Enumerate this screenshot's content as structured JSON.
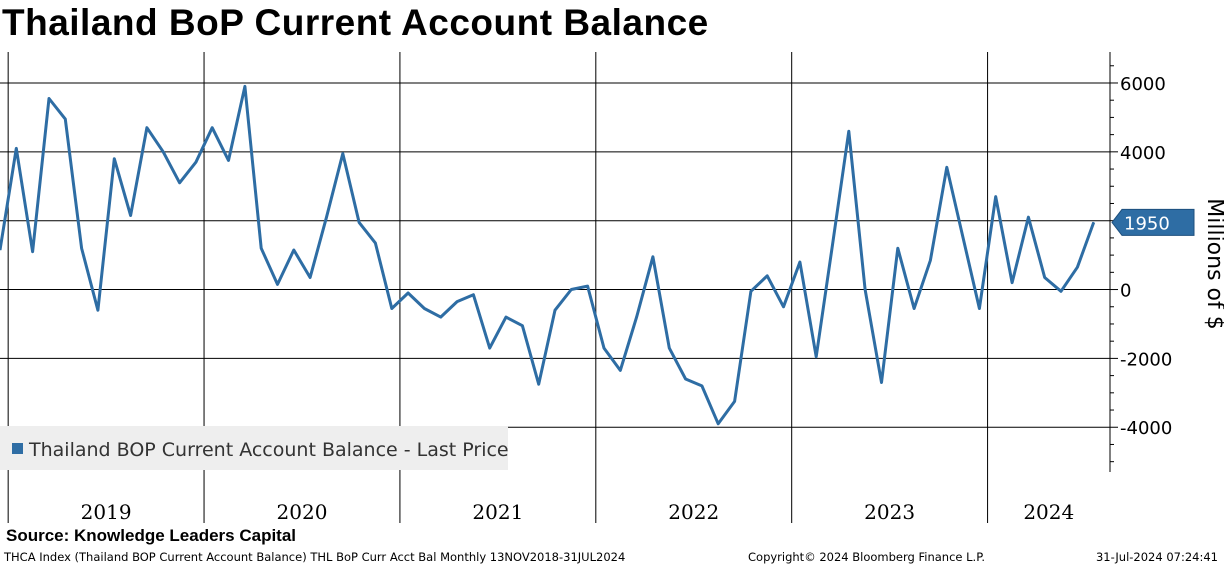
{
  "header": {
    "title": "Thailand BoP Current Account Balance"
  },
  "source": {
    "text": "Source:  Knowledge Leaders Capital"
  },
  "footer": {
    "left": "THCA Index (Thailand BOP Current Account Balance) THL BoP Curr Acct Bal  Monthly 13NOV2018-31JUL2024",
    "middle": "Copyright© 2024 Bloomberg Finance L.P.",
    "right": "31-Jul-2024 07:24:41"
  },
  "colors": {
    "series": "#2e6da4",
    "badge": "#2e6da4",
    "legend_bg": "#eeeeee"
  },
  "chart_data": {
    "type": "line",
    "title": "Thailand BoP Current Account Balance",
    "ylabel": "Millions of $",
    "xlabel": "",
    "ylim": [
      -5300,
      6900
    ],
    "y_ticks": [
      6000,
      4000,
      2000,
      0,
      -2000,
      -4000
    ],
    "y_tick_labels": [
      "6000",
      "4000",
      "2000",
      "0",
      "-2000",
      "-4000"
    ],
    "grid": true,
    "legend_position": "bottom-left",
    "x_start_month_index": -1,
    "years": [
      {
        "label": "2019",
        "start_month_index": 0
      },
      {
        "label": "2020",
        "start_month_index": 12
      },
      {
        "label": "2021",
        "start_month_index": 24
      },
      {
        "label": "2022",
        "start_month_index": 36
      },
      {
        "label": "2023",
        "start_month_index": 48
      },
      {
        "label": "2024",
        "start_month_index": 60
      }
    ],
    "x_end_month_index": 67,
    "series": [
      {
        "name": "Thailand BOP Current Account Balance - Last Price",
        "start_month": "2018-11",
        "last_value_label": "1950",
        "values": [
          1150,
          4100,
          1100,
          5550,
          4950,
          1200,
          -600,
          3800,
          2150,
          4700,
          4000,
          3100,
          3700,
          4700,
          3750,
          5900,
          1200,
          150,
          1150,
          350,
          2100,
          3950,
          1950,
          1350,
          -550,
          -100,
          -550,
          -800,
          -350,
          -150,
          -1700,
          -800,
          -1050,
          -2750,
          -600,
          0,
          100,
          -1700,
          -2350,
          -800,
          950,
          -1700,
          -2600,
          -2800,
          -3900,
          -3250,
          -50,
          400,
          -500,
          800,
          -1950,
          1300,
          4600,
          0,
          -2700,
          1200,
          -550,
          850,
          3550,
          1500,
          -550,
          2700,
          200,
          2100,
          350,
          -50,
          650,
          1950
        ]
      }
    ]
  }
}
